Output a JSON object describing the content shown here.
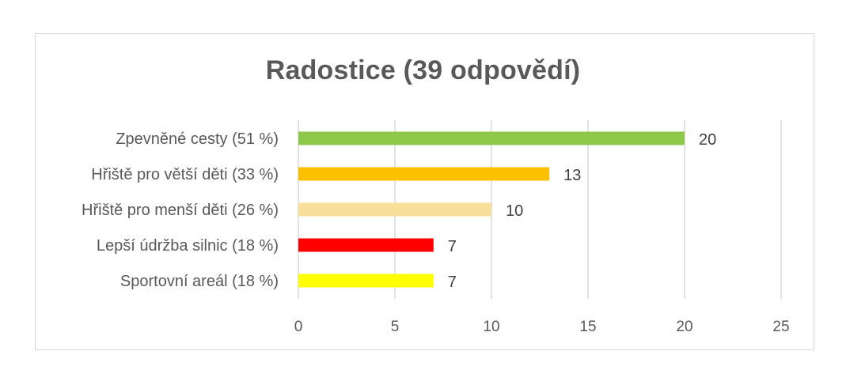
{
  "chart_data": {
    "type": "bar",
    "orientation": "horizontal",
    "title": "Radostice (39 odpovědí)",
    "categories": [
      "Zpevněné cesty (51 %)",
      "Hřiště pro větší děti (33 %)",
      "Hřiště pro menší děti (26 %)",
      "Lepší údržba silnic (18 %)",
      "Sportovní areál (18 %)"
    ],
    "values": [
      20,
      13,
      10,
      7,
      7
    ],
    "colors": [
      "#8dc84a",
      "#ffc000",
      "#f9e09a",
      "#ff0000",
      "#ffff00"
    ],
    "xlim": [
      0,
      25
    ],
    "xticks": [
      0,
      5,
      10,
      15,
      20,
      25
    ],
    "grid": true,
    "data_labels": true,
    "legend": false
  }
}
